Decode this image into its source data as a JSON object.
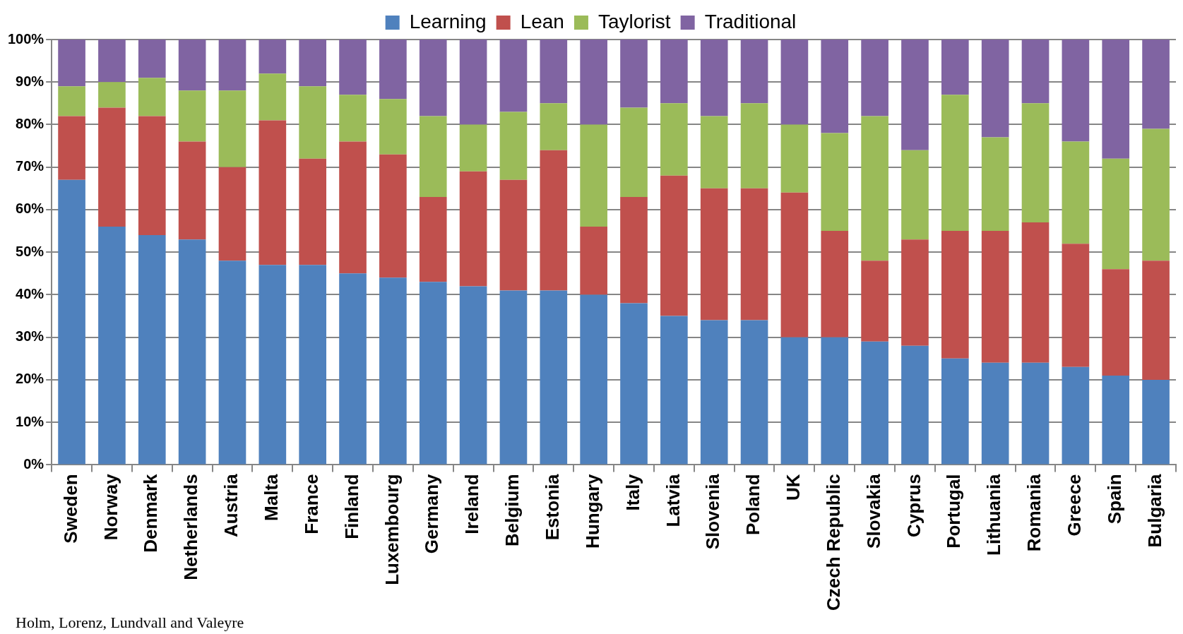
{
  "chart_data": {
    "type": "bar",
    "stacked": true,
    "legend": "top",
    "grid": "y",
    "categories": [
      "Sweden",
      "Norway",
      "Denmark",
      "Netherlands",
      "Austria",
      "Malta",
      "France",
      "Finland",
      "Luxembourg",
      "Germany",
      "Ireland",
      "Belgium",
      "Estonia",
      "Hungary",
      "Italy",
      "Latvia",
      "Slovenia",
      "Poland",
      "UK",
      "Czech Republic",
      "Slovakia",
      "Cyprus",
      "Portugal",
      "Lithuania",
      "Romania",
      "Greece",
      "Spain",
      "Bulgaria"
    ],
    "series": [
      {
        "name": "Learning",
        "color": "#4f81bd",
        "values": [
          67,
          56,
          54,
          53,
          48,
          47,
          47,
          45,
          44,
          43,
          42,
          41,
          41,
          40,
          38,
          35,
          34,
          34,
          30,
          30,
          29,
          28,
          25,
          24,
          24,
          23,
          21,
          20
        ]
      },
      {
        "name": "Lean",
        "color": "#c0504d",
        "values": [
          15,
          28,
          28,
          23,
          22,
          34,
          25,
          31,
          29,
          20,
          27,
          26,
          33,
          16,
          25,
          33,
          31,
          31,
          34,
          25,
          19,
          25,
          30,
          31,
          33,
          29,
          25,
          28
        ]
      },
      {
        "name": "Taylorist",
        "color": "#9bbb59",
        "values": [
          7,
          6,
          9,
          12,
          18,
          11,
          17,
          11,
          13,
          19,
          11,
          16,
          11,
          24,
          21,
          17,
          17,
          20,
          16,
          23,
          34,
          21,
          32,
          22,
          28,
          24,
          26,
          31
        ]
      },
      {
        "name": "Traditional",
        "color": "#8064a2",
        "values": [
          11,
          10,
          9,
          12,
          12,
          8,
          11,
          13,
          14,
          18,
          20,
          17,
          15,
          20,
          16,
          15,
          18,
          15,
          20,
          22,
          18,
          26,
          13,
          23,
          15,
          24,
          28,
          21
        ]
      }
    ],
    "ylim": [
      0,
      100
    ],
    "yticks": [
      {
        "value": 0,
        "label": "0%"
      },
      {
        "value": 10,
        "label": "10%"
      },
      {
        "value": 20,
        "label": "20%"
      },
      {
        "value": 30,
        "label": "30%"
      },
      {
        "value": 40,
        "label": "40%"
      },
      {
        "value": 50,
        "label": "50%"
      },
      {
        "value": 60,
        "label": "60%"
      },
      {
        "value": 70,
        "label": "70%"
      },
      {
        "value": 80,
        "label": "80%"
      },
      {
        "value": 90,
        "label": "90%"
      },
      {
        "value": 100,
        "label": "100%"
      }
    ],
    "annotations": [
      "Holm, Lorenz, Lundvall and Valeyre"
    ]
  }
}
